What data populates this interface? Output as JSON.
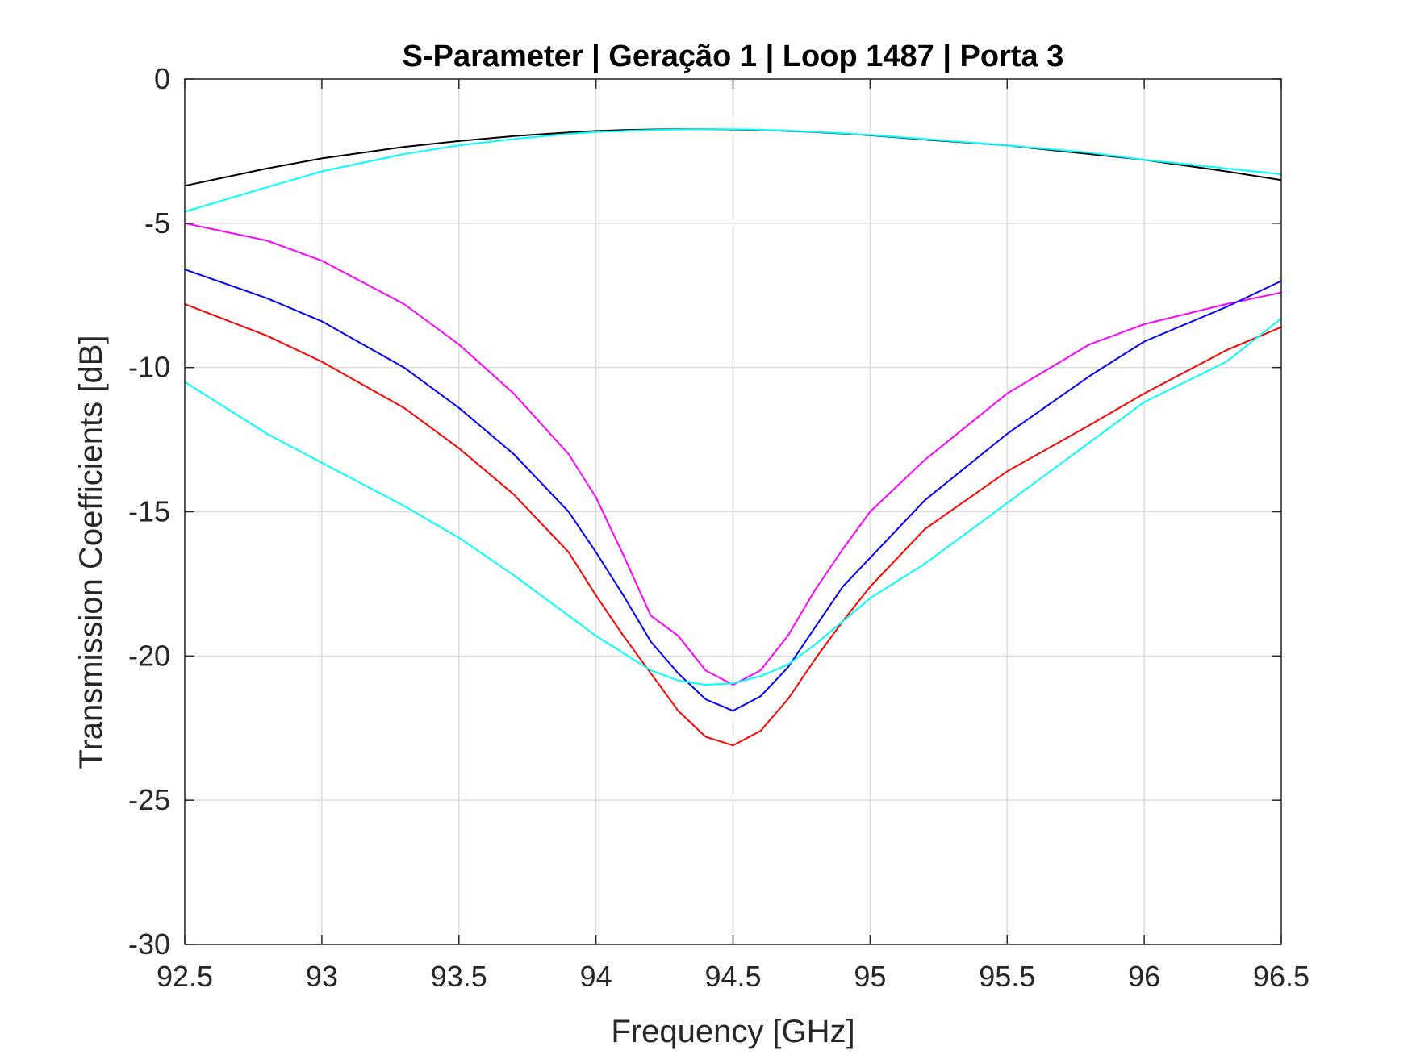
{
  "chart_data": {
    "type": "line",
    "title": "S-Parameter  |  Geração 1  |  Loop 1487  |  Porta 3",
    "xlabel": "Frequency [GHz]",
    "ylabel": "Transmission Coefficients [dB]",
    "xlim": [
      92.5,
      96.5
    ],
    "ylim": [
      -30,
      0
    ],
    "xticks": [
      92.5,
      93,
      93.5,
      94,
      94.5,
      95,
      95.5,
      96,
      96.5
    ],
    "xtick_labels": [
      "92.5",
      "93",
      "93.5",
      "94",
      "94.5",
      "95",
      "95.5",
      "96",
      "96.5"
    ],
    "yticks": [
      0,
      -5,
      -10,
      -15,
      -20,
      -25,
      -30
    ],
    "ytick_labels": [
      "0",
      "-5",
      "-10",
      "-15",
      "-20",
      "-25",
      "-30"
    ],
    "grid": true,
    "legend": "none",
    "x": [
      92.5,
      92.8,
      93.0,
      93.3,
      93.5,
      93.7,
      93.9,
      94.0,
      94.1,
      94.2,
      94.3,
      94.4,
      94.5,
      94.6,
      94.7,
      94.8,
      94.9,
      95.0,
      95.2,
      95.5,
      95.8,
      96.0,
      96.3,
      96.5
    ],
    "series": [
      {
        "color": "#000000",
        "values": [
          -3.7,
          -3.1,
          -2.75,
          -2.35,
          -2.15,
          -1.98,
          -1.85,
          -1.8,
          -1.77,
          -1.75,
          -1.74,
          -1.74,
          -1.75,
          -1.77,
          -1.8,
          -1.84,
          -1.89,
          -1.95,
          -2.1,
          -2.3,
          -2.6,
          -2.8,
          -3.2,
          -3.5
        ]
      },
      {
        "color": "#00ffff",
        "values": [
          -4.6,
          -3.75,
          -3.2,
          -2.6,
          -2.3,
          -2.08,
          -1.9,
          -1.84,
          -1.8,
          -1.77,
          -1.75,
          -1.74,
          -1.74,
          -1.76,
          -1.79,
          -1.83,
          -1.88,
          -1.94,
          -2.08,
          -2.3,
          -2.55,
          -2.8,
          -3.1,
          -3.3
        ]
      },
      {
        "color": "#ff00ff",
        "values": [
          -5.0,
          -5.6,
          -6.3,
          -7.8,
          -9.2,
          -10.9,
          -13.0,
          -14.5,
          -16.5,
          -18.6,
          -19.3,
          -20.5,
          -21.0,
          -20.5,
          -19.3,
          -17.7,
          -16.3,
          -15.0,
          -13.2,
          -10.9,
          -9.2,
          -8.5,
          -7.8,
          -7.4
        ]
      },
      {
        "color": "#0000ff",
        "values": [
          -6.6,
          -7.6,
          -8.4,
          -10.0,
          -11.4,
          -13.0,
          -15.0,
          -16.4,
          -17.9,
          -19.5,
          -20.6,
          -21.5,
          -21.9,
          -21.4,
          -20.4,
          -19.0,
          -17.6,
          -16.6,
          -14.6,
          -12.3,
          -10.3,
          -9.1,
          -7.9,
          -7.0
        ]
      },
      {
        "color": "#ff0000",
        "values": [
          -7.8,
          -8.9,
          -9.8,
          -11.4,
          -12.8,
          -14.4,
          -16.4,
          -17.9,
          -19.3,
          -20.6,
          -21.9,
          -22.8,
          -23.1,
          -22.6,
          -21.5,
          -20.1,
          -18.8,
          -17.6,
          -15.6,
          -13.6,
          -12.0,
          -10.9,
          -9.4,
          -8.6
        ]
      },
      {
        "color": "#00ffff",
        "values": [
          -10.5,
          -12.3,
          -13.3,
          -14.8,
          -15.9,
          -17.2,
          -18.6,
          -19.3,
          -19.9,
          -20.5,
          -20.85,
          -21.0,
          -20.95,
          -20.7,
          -20.3,
          -19.6,
          -18.8,
          -18.0,
          -16.8,
          -14.7,
          -12.6,
          -11.2,
          -9.8,
          -8.3
        ]
      }
    ]
  }
}
